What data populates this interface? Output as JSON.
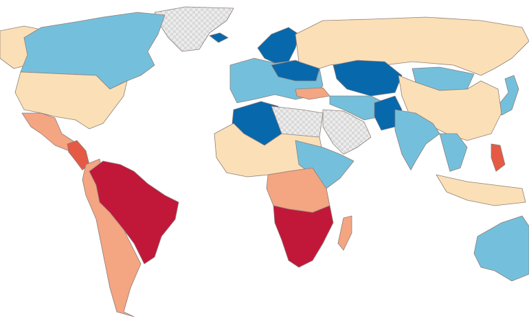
{
  "map": {
    "colors": [
      "#0868ac",
      "#74c0dc",
      "#fbdfb6",
      "#f4a582",
      "#e45a45",
      "#c1183a"
    ],
    "no_data": "#e3e3e3",
    "border": "#8c7f7a"
  }
}
